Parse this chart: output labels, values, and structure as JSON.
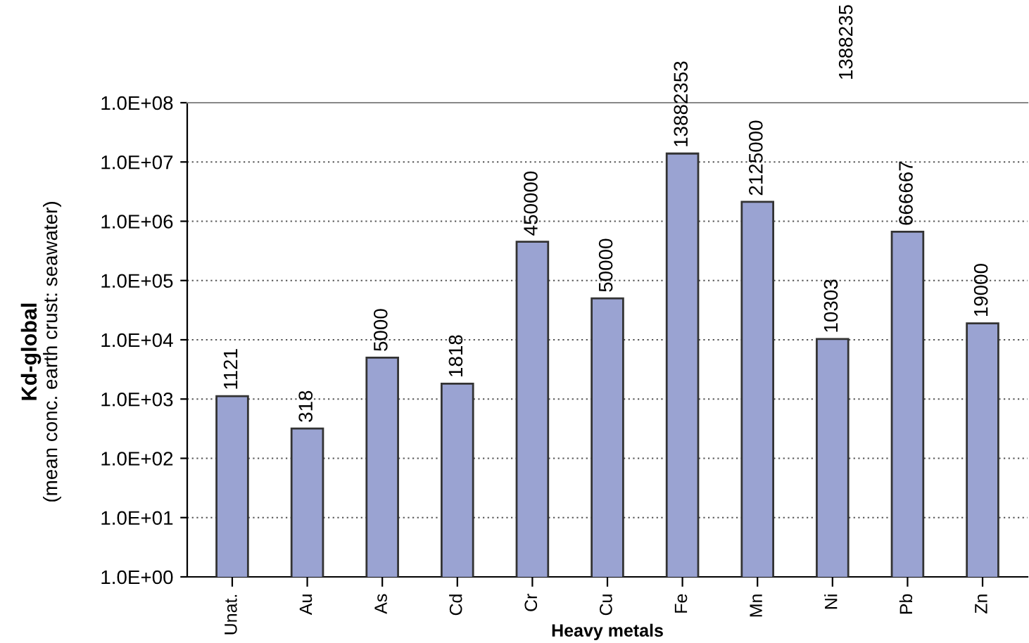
{
  "chart_data": {
    "type": "bar",
    "xlabel": "Heavy metals",
    "ylabel": "Kd-global\n(mean conc. earth crust: seawater)",
    "categories": [
      "Unat.",
      "Au",
      "As",
      "Cd",
      "Cr",
      "Cu",
      "Fe",
      "Mn",
      "Ni",
      "Pb",
      "Zn"
    ],
    "values": [
      1121,
      318,
      5000,
      1818,
      450000,
      50000,
      13882353,
      2125000,
      10303,
      666667,
      19000
    ],
    "color": "#9aa3d2",
    "log": true,
    "ylim": [
      1,
      100000000
    ],
    "yticks": [
      {
        "value": 1,
        "label": "1.0E+00"
      },
      {
        "value": 10,
        "label": "1.0E+01"
      },
      {
        "value": 100,
        "label": "1.0E+02"
      },
      {
        "value": 1000,
        "label": "1.0E+03"
      },
      {
        "value": 10000,
        "label": "1.0E+04"
      },
      {
        "value": 100000,
        "label": "1.0E+05"
      },
      {
        "value": 1000000,
        "label": "1.0E+06"
      },
      {
        "value": 10000000,
        "label": "1.0E+07"
      },
      {
        "value": 100000000,
        "label": "1.0E+08"
      }
    ],
    "grid": "y",
    "data_labels": true,
    "annotations": [
      "1388235"
    ]
  }
}
